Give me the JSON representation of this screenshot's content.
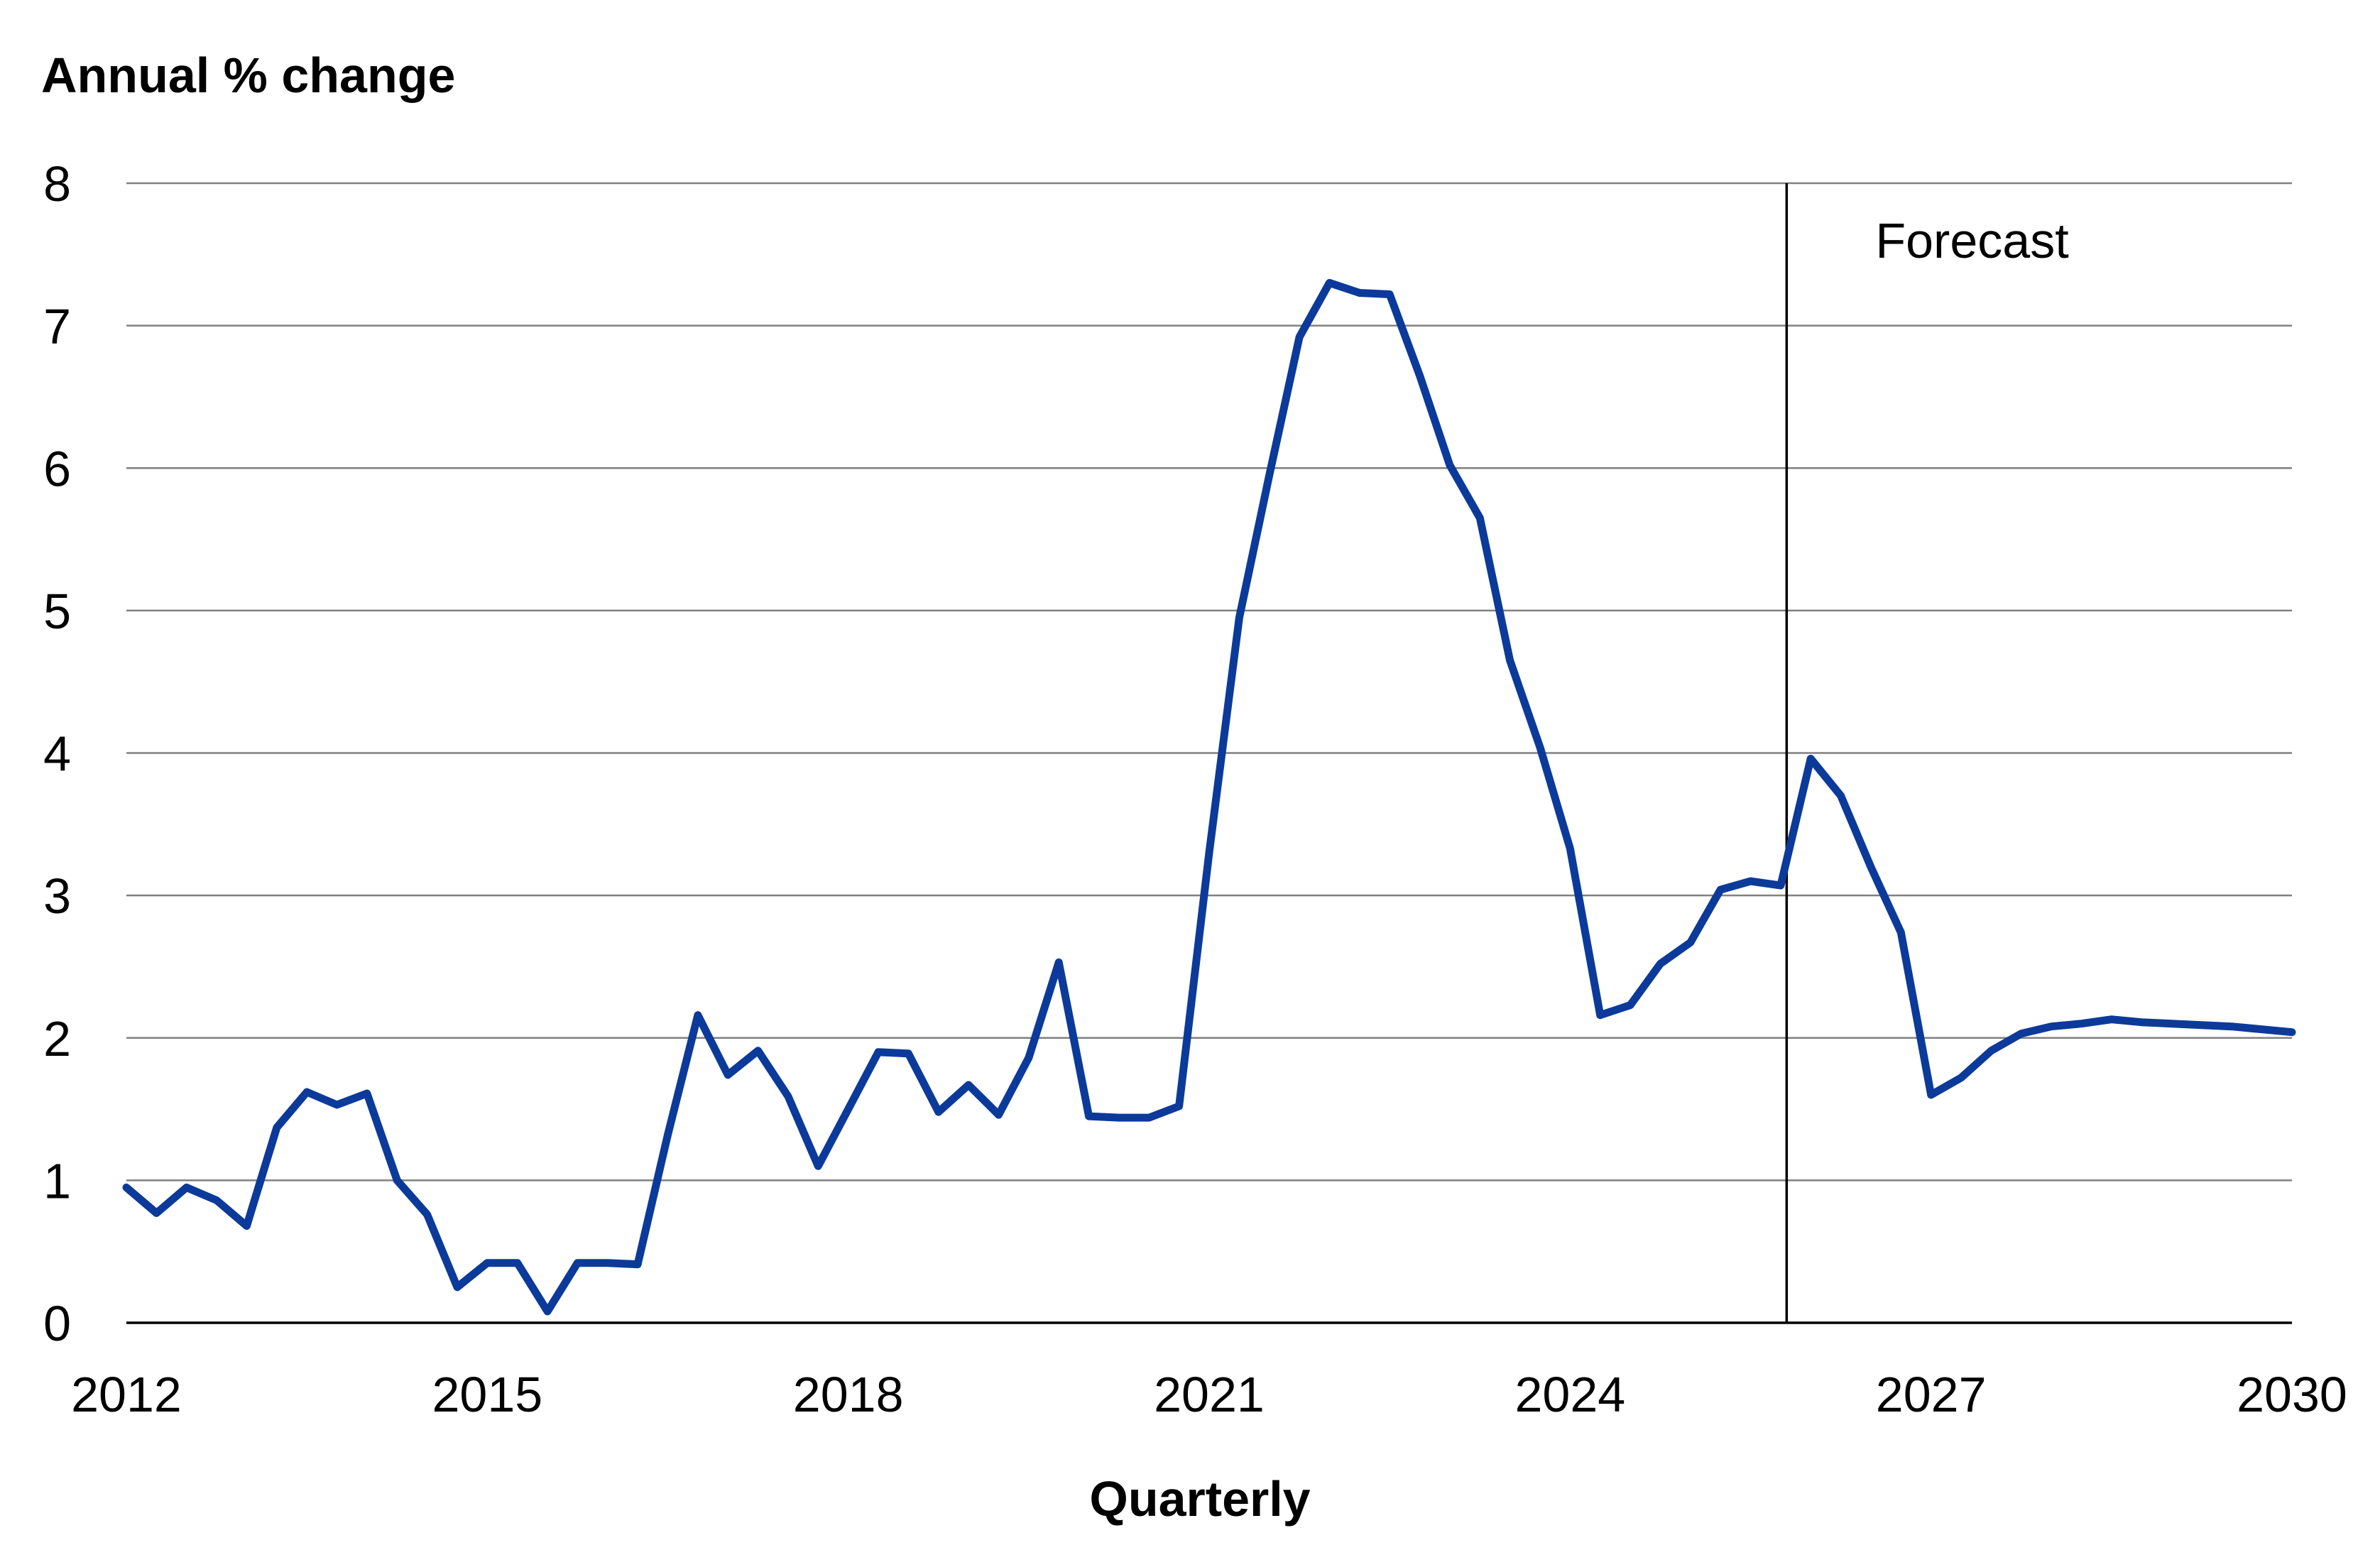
{
  "chart_data": {
    "type": "line",
    "title": "",
    "ylabel": "Annual % change",
    "xlabel": "Quarterly",
    "ylim": [
      0,
      8
    ],
    "xlim": [
      2012,
      2030
    ],
    "yticks": [
      "0",
      "1",
      "2",
      "3",
      "4",
      "5",
      "6",
      "7",
      "8"
    ],
    "xticks": [
      "2012",
      "2015",
      "2018",
      "2021",
      "2024",
      "2027",
      "2030"
    ],
    "grid": true,
    "forecast_start": 2025.8,
    "annotation": "Forecast",
    "color": "#0b3a9a",
    "series": [
      {
        "x": [
          2012.0,
          2012.25,
          2012.5,
          2012.75,
          2013.0,
          2013.25,
          2013.5,
          2013.75,
          2014.0,
          2014.25,
          2014.5,
          2014.75,
          2015.0,
          2015.25,
          2015.5,
          2015.75,
          2016.0,
          2016.25,
          2016.5,
          2016.75,
          2017.0,
          2017.25,
          2017.5,
          2017.75,
          2018.0,
          2018.25,
          2018.5,
          2018.75,
          2019.0,
          2019.25,
          2019.5,
          2019.75,
          2020.0,
          2020.25,
          2020.5,
          2020.75,
          2021.0,
          2021.25,
          2021.5,
          2021.75,
          2022.0,
          2022.25,
          2022.5,
          2022.75,
          2023.0,
          2023.25,
          2023.5,
          2023.75,
          2024.0,
          2024.25,
          2024.5,
          2024.75,
          2025.0,
          2025.25,
          2025.5,
          2025.75,
          2026.0,
          2026.25,
          2026.5,
          2026.75,
          2027.0,
          2027.25,
          2027.5,
          2027.75,
          2028.0,
          2028.25,
          2028.5,
          2028.75,
          2029.0,
          2029.25,
          2029.5,
          2029.75,
          2030.0
        ],
        "y": [
          0.95,
          0.77,
          0.95,
          0.86,
          0.68,
          1.37,
          1.62,
          1.53,
          1.61,
          1.0,
          0.76,
          0.25,
          0.42,
          0.42,
          0.08,
          0.42,
          0.42,
          0.41,
          1.32,
          2.16,
          1.74,
          1.91,
          1.59,
          1.1,
          1.5,
          1.9,
          1.89,
          1.48,
          1.67,
          1.46,
          1.86,
          2.53,
          1.45,
          1.44,
          1.44,
          1.52,
          3.3,
          4.95,
          5.95,
          6.92,
          7.3,
          7.23,
          7.22,
          6.65,
          6.02,
          5.65,
          4.65,
          4.04,
          3.33,
          2.16,
          2.23,
          2.52,
          2.67,
          3.04,
          3.1,
          3.07,
          3.96,
          3.7,
          3.2,
          2.74,
          1.6,
          1.72,
          1.91,
          2.03,
          2.08,
          2.1,
          2.13,
          2.11,
          2.1,
          2.09,
          2.08,
          2.06,
          2.04
        ]
      }
    ]
  }
}
